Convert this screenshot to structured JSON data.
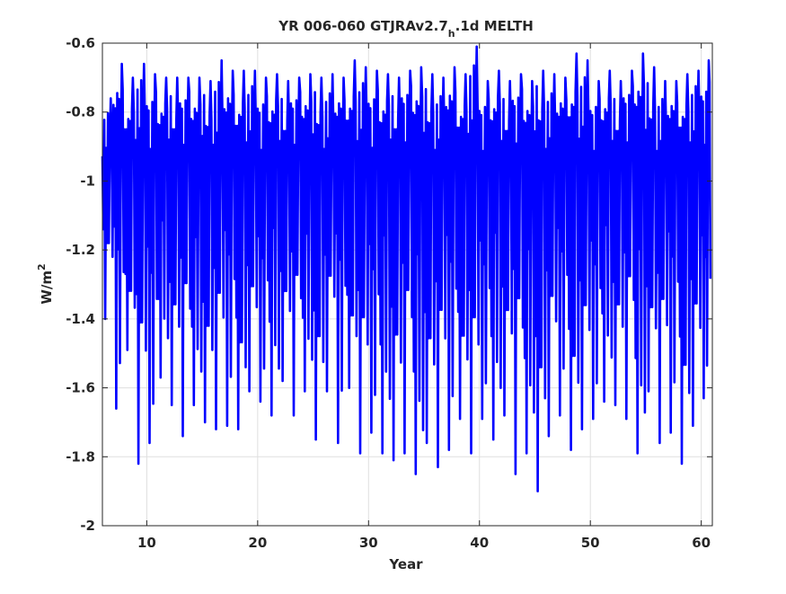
{
  "chart_data": {
    "type": "line",
    "title_main": "YR 006-060 GTJRAv2.7",
    "title_sub": "h",
    "title_tail": ".1d MELTH",
    "xlabel": "Year",
    "ylabel_main": "W/m",
    "ylabel_sup": "2",
    "xlim": [
      6,
      61
    ],
    "ylim": [
      -2,
      -0.6
    ],
    "xticks": [
      10,
      20,
      30,
      40,
      50,
      60
    ],
    "xtick_labels": [
      "10",
      "20",
      "30",
      "40",
      "50",
      "60"
    ],
    "yticks": [
      -2,
      -1.8,
      -1.6,
      -1.4,
      -1.2,
      -1,
      -0.8,
      -0.6
    ],
    "ytick_labels": [
      "-2",
      "-1.8",
      "-1.6",
      "-1.4",
      "-1.2",
      "-1",
      "-0.8",
      "-0.6"
    ],
    "grid": true,
    "series": [
      {
        "color": "#0000ff",
        "description": "daily series, oscillating around -1.0; per-year envelope (min, max) below",
        "years": [
          6,
          7,
          8,
          9,
          10,
          11,
          12,
          13,
          14,
          15,
          16,
          17,
          18,
          19,
          20,
          21,
          22,
          23,
          24,
          25,
          26,
          27,
          28,
          29,
          30,
          31,
          32,
          33,
          34,
          35,
          36,
          37,
          38,
          39,
          40,
          41,
          42,
          43,
          44,
          45,
          46,
          47,
          48,
          49,
          50,
          51,
          52,
          53,
          54,
          55,
          56,
          57,
          58,
          59,
          60
        ],
        "min": [
          -1.4,
          -1.66,
          -1.49,
          -1.82,
          -1.76,
          -1.57,
          -1.65,
          -1.74,
          -1.65,
          -1.7,
          -1.72,
          -1.71,
          -1.72,
          -1.61,
          -1.64,
          -1.68,
          -1.58,
          -1.68,
          -1.61,
          -1.75,
          -1.61,
          -1.76,
          -1.6,
          -1.79,
          -1.73,
          -1.79,
          -1.81,
          -1.79,
          -1.85,
          -1.76,
          -1.83,
          -1.78,
          -1.69,
          -1.79,
          -1.69,
          -1.75,
          -1.68,
          -1.85,
          -1.79,
          -1.9,
          -1.74,
          -1.68,
          -1.78,
          -1.72,
          -1.69,
          -1.64,
          -1.65,
          -1.69,
          -1.79,
          -1.61,
          -1.76,
          -1.73,
          -1.82,
          -1.71,
          -1.63
        ],
        "max": [
          -0.76,
          -0.66,
          -0.7,
          -0.66,
          -0.69,
          -0.7,
          -0.7,
          -0.7,
          -0.7,
          -0.71,
          -0.65,
          -0.68,
          -0.68,
          -0.68,
          -0.7,
          -0.69,
          -0.71,
          -0.7,
          -0.69,
          -0.7,
          -0.69,
          -0.7,
          -0.65,
          -0.67,
          -0.68,
          -0.69,
          -0.7,
          -0.68,
          -0.67,
          -0.69,
          -0.7,
          -0.67,
          -0.69,
          -0.61,
          -0.71,
          -0.68,
          -0.71,
          -0.69,
          -0.71,
          -0.68,
          -0.69,
          -0.7,
          -0.63,
          -0.65,
          -0.71,
          -0.68,
          -0.71,
          -0.68,
          -0.63,
          -0.67,
          -0.71,
          -0.71,
          -0.69,
          -0.68,
          -0.65
        ]
      }
    ]
  }
}
